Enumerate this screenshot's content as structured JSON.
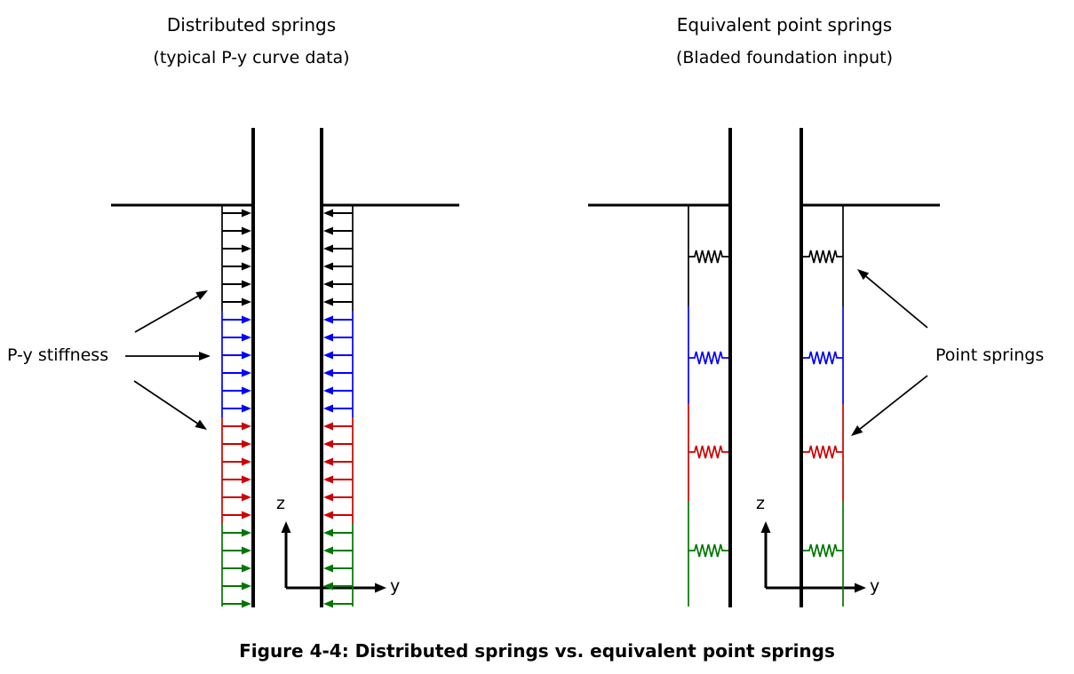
{
  "figure": {
    "caption": "Figure 4-4: Distributed springs vs. equivalent point springs"
  },
  "colors": {
    "ink": "#000000",
    "background": "#ffffff"
  },
  "left_diagram": {
    "title": "Distributed springs",
    "subtitle": "(typical P-y curve data)",
    "annotation": "P-y stiffness",
    "axis": {
      "vertical": "z",
      "horizontal": "y"
    },
    "bands": [
      {
        "name": "black",
        "color": "#000000",
        "arrow_count": 6
      },
      {
        "name": "blue",
        "color": "#0000ff",
        "arrow_count": 6
      },
      {
        "name": "red",
        "color": "#cc0000",
        "arrow_count": 6
      },
      {
        "name": "green",
        "color": "#007700",
        "arrow_count": 5
      }
    ]
  },
  "right_diagram": {
    "title": "Equivalent point springs",
    "subtitle": "(Bladed foundation input)",
    "annotation": "Point springs",
    "axis": {
      "vertical": "z",
      "horizontal": "y"
    },
    "springs": [
      {
        "name": "black",
        "color": "#000000"
      },
      {
        "name": "blue",
        "color": "#0000ff"
      },
      {
        "name": "red",
        "color": "#cc0000"
      },
      {
        "name": "green",
        "color": "#007700"
      }
    ]
  }
}
